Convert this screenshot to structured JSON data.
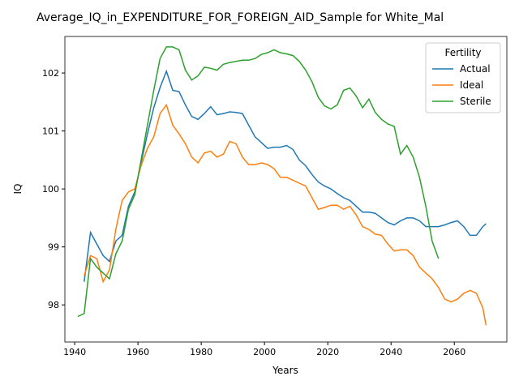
{
  "chart_data": {
    "type": "line",
    "title": "Average_IQ_in_EXPENDITURE_FOR_FOREIGN_AID_Sample for White_Mal",
    "x_label": "Years",
    "y_label": "IQ",
    "legend_title": "Fertility",
    "legend_position": "upper right",
    "x": [
      1941,
      1943,
      1945,
      1947,
      1949,
      1951,
      1953,
      1955,
      1957,
      1959,
      1961,
      1963,
      1965,
      1967,
      1969,
      1971,
      1973,
      1975,
      1977,
      1979,
      1981,
      1983,
      1985,
      1987,
      1989,
      1991,
      1993,
      1995,
      1997,
      1999,
      2001,
      2003,
      2005,
      2007,
      2009,
      2011,
      2013,
      2015,
      2017,
      2019,
      2021,
      2023,
      2025,
      2027,
      2029,
      2031,
      2033,
      2035,
      2037,
      2039,
      2041,
      2043,
      2045,
      2047,
      2049,
      2051,
      2053,
      2055,
      2057,
      2059,
      2061,
      2063,
      2065,
      2067,
      2069,
      2070
    ],
    "series": [
      {
        "name": "Actual",
        "color": "#1f77b4",
        "values": [
          null,
          98.4,
          99.25,
          99.05,
          98.85,
          98.75,
          99.1,
          99.2,
          99.7,
          99.95,
          100.45,
          100.95,
          101.4,
          101.75,
          102.03,
          101.7,
          101.68,
          101.45,
          101.25,
          101.2,
          101.3,
          101.42,
          101.28,
          101.3,
          101.33,
          101.32,
          101.3,
          101.1,
          100.9,
          100.8,
          100.7,
          100.72,
          100.72,
          100.75,
          100.68,
          100.5,
          100.4,
          100.25,
          100.12,
          100.05,
          100.0,
          99.92,
          99.85,
          99.8,
          99.7,
          99.6,
          99.6,
          99.58,
          99.5,
          99.42,
          99.38,
          99.45,
          99.5,
          99.5,
          99.45,
          99.35,
          99.35,
          99.35,
          99.38,
          99.42,
          99.45,
          99.35,
          99.2,
          99.2,
          99.35,
          99.4
        ]
      },
      {
        "name": "Ideal",
        "color": "#ff7f0e",
        "values": [
          null,
          98.5,
          98.85,
          98.8,
          98.4,
          98.6,
          99.3,
          99.8,
          99.95,
          100.0,
          100.4,
          100.7,
          100.9,
          101.3,
          101.45,
          101.1,
          100.95,
          100.78,
          100.55,
          100.45,
          100.62,
          100.65,
          100.55,
          100.6,
          100.82,
          100.78,
          100.55,
          100.42,
          100.42,
          100.45,
          100.42,
          100.35,
          100.2,
          100.2,
          100.15,
          100.1,
          100.05,
          99.85,
          99.65,
          99.68,
          99.72,
          99.72,
          99.65,
          99.7,
          99.55,
          99.35,
          99.3,
          99.22,
          99.2,
          99.05,
          98.93,
          98.95,
          98.95,
          98.85,
          98.65,
          98.55,
          98.45,
          98.3,
          98.1,
          98.05,
          98.1,
          98.2,
          98.25,
          98.2,
          97.95,
          97.65
        ]
      },
      {
        "name": "Sterile",
        "color": "#2ca02c",
        "values": [
          97.8,
          97.85,
          98.8,
          98.65,
          98.55,
          98.45,
          98.88,
          99.1,
          99.65,
          99.9,
          100.5,
          101.1,
          101.7,
          102.25,
          102.45,
          102.45,
          102.4,
          102.05,
          101.88,
          101.95,
          102.1,
          102.08,
          102.05,
          102.15,
          102.18,
          102.2,
          102.22,
          102.22,
          102.25,
          102.32,
          102.35,
          102.4,
          102.35,
          102.33,
          102.3,
          102.2,
          102.05,
          101.85,
          101.58,
          101.43,
          101.38,
          101.45,
          101.7,
          101.74,
          101.6,
          101.4,
          101.55,
          101.32,
          101.2,
          101.12,
          101.08,
          100.6,
          100.75,
          100.55,
          100.2,
          99.7,
          99.1,
          98.8,
          null,
          null,
          null,
          null,
          null,
          null,
          null,
          null
        ]
      }
    ],
    "xlim": [
      1936.9,
      2076.6
    ],
    "ylim": [
      97.36,
      102.63
    ],
    "xticks": [
      1940,
      1960,
      1980,
      2000,
      2020,
      2040,
      2060
    ],
    "yticks": [
      98,
      99,
      100,
      101,
      102
    ]
  }
}
